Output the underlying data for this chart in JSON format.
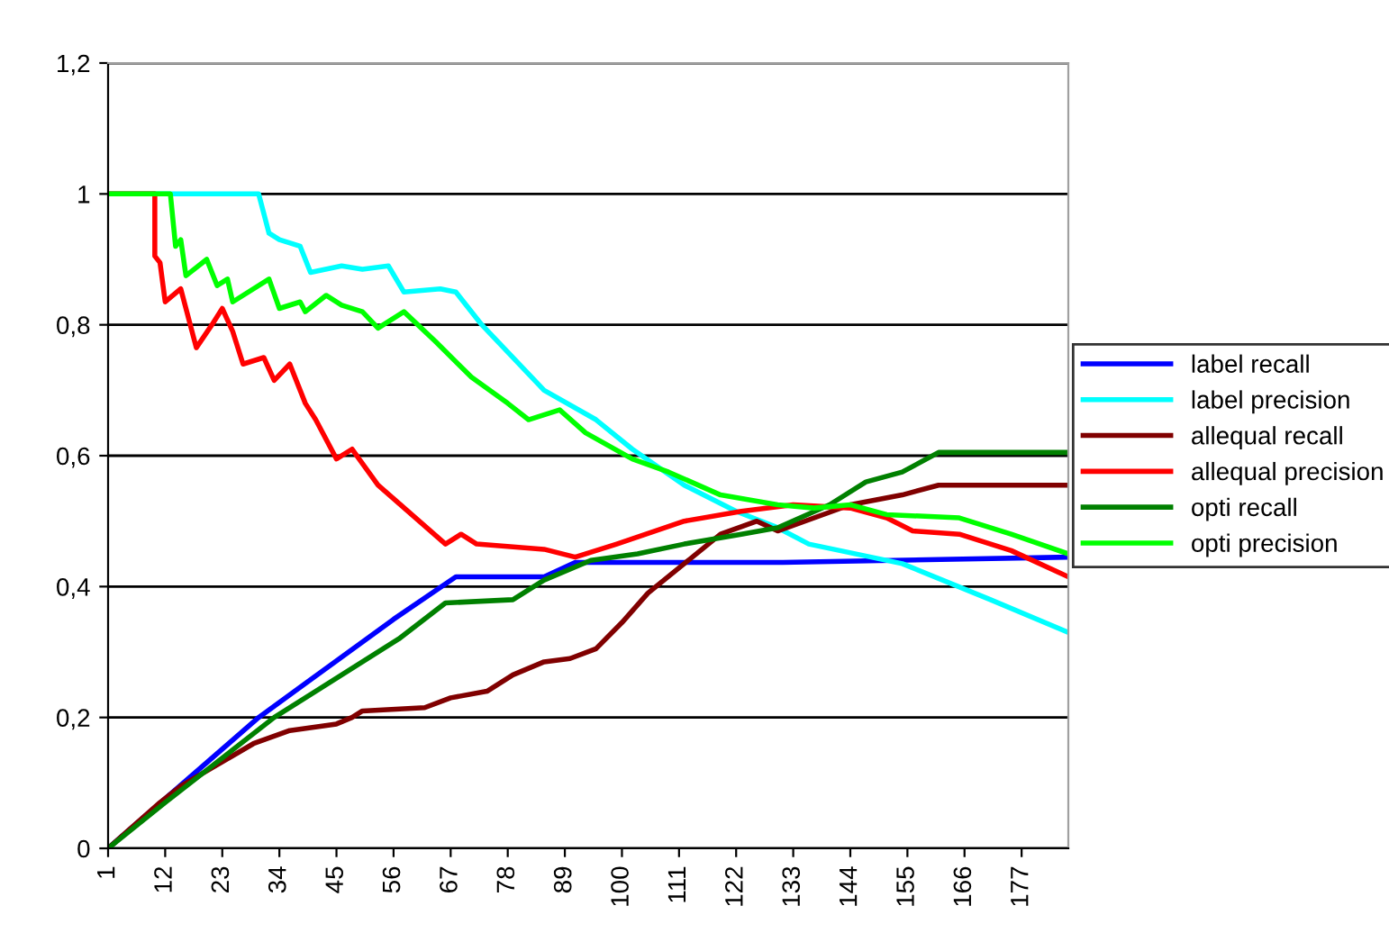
{
  "chart_data": {
    "type": "line",
    "xlim": [
      1,
      186
    ],
    "xticks": [
      1,
      12,
      23,
      34,
      45,
      56,
      67,
      78,
      89,
      100,
      111,
      122,
      133,
      144,
      155,
      166,
      177
    ],
    "ylim": [
      0,
      1.2
    ],
    "yticks": [
      0,
      {
        "value": 0.2,
        "label": "0,2"
      },
      {
        "value": 0.4,
        "label": "0,4"
      },
      {
        "value": 0.6,
        "label": "0,6"
      },
      {
        "value": 0.8,
        "label": "0,8"
      },
      1,
      {
        "value": 1.2,
        "label": "1,2"
      }
    ],
    "grid": "y",
    "legend": "right",
    "marker": "none",
    "line_style": "solid",
    "series": [
      {
        "name": "label recall",
        "color": "#0000ff",
        "x": [
          1,
          30,
          56,
          68,
          85,
          91,
          131,
          186
        ],
        "values": [
          0,
          0.2,
          0.35,
          0.415,
          0.415,
          0.437,
          0.437,
          0.445
        ]
      },
      {
        "name": "label precision",
        "color": "#00ffff",
        "x": [
          1,
          30,
          32,
          34,
          38,
          40,
          46,
          50,
          55,
          58,
          65,
          68,
          73,
          85,
          95,
          102,
          112,
          122,
          130,
          136,
          154,
          171,
          186
        ],
        "values": [
          1,
          1,
          0.94,
          0.93,
          0.92,
          0.88,
          0.89,
          0.885,
          0.89,
          0.85,
          0.855,
          0.85,
          0.8,
          0.7,
          0.655,
          0.61,
          0.555,
          0.515,
          0.49,
          0.465,
          0.435,
          0.38,
          0.33
        ]
      },
      {
        "name": "allequal recall",
        "color": "#800000",
        "x": [
          1,
          11,
          15,
          29,
          36,
          45,
          48,
          50,
          62,
          67,
          74,
          79,
          85,
          90,
          95,
          100,
          105,
          112,
          119,
          126,
          130,
          144,
          154,
          161,
          186
        ],
        "values": [
          0,
          0.07,
          0.095,
          0.16,
          0.18,
          0.19,
          0.2,
          0.21,
          0.215,
          0.23,
          0.24,
          0.265,
          0.285,
          0.29,
          0.305,
          0.345,
          0.39,
          0.435,
          0.48,
          0.5,
          0.485,
          0.525,
          0.54,
          0.555,
          0.555
        ]
      },
      {
        "name": "allequal precision",
        "color": "#ff0000",
        "x": [
          1,
          10,
          10,
          11,
          12,
          15,
          18,
          21,
          23,
          25,
          27,
          31,
          33,
          36,
          39,
          41,
          45,
          48,
          53,
          66,
          69,
          72,
          85,
          91,
          99,
          112,
          123,
          133,
          144,
          151,
          156,
          165,
          175,
          186
        ],
        "values": [
          1,
          1,
          0.905,
          0.895,
          0.835,
          0.855,
          0.765,
          0.8,
          0.825,
          0.79,
          0.74,
          0.75,
          0.715,
          0.74,
          0.68,
          0.655,
          0.595,
          0.61,
          0.555,
          0.465,
          0.48,
          0.465,
          0.457,
          0.445,
          0.465,
          0.5,
          0.515,
          0.525,
          0.52,
          0.505,
          0.485,
          0.48,
          0.455,
          0.415
        ]
      },
      {
        "name": "opti recall",
        "color": "#008000",
        "x": [
          1,
          12,
          33,
          57,
          66,
          79,
          85,
          94,
          103,
          112,
          123,
          130,
          140,
          147,
          154,
          161,
          186
        ],
        "values": [
          0,
          0.07,
          0.2,
          0.32,
          0.375,
          0.38,
          0.41,
          0.44,
          0.45,
          0.465,
          0.48,
          0.49,
          0.525,
          0.56,
          0.575,
          0.605,
          0.605
        ]
      },
      {
        "name": "opti precision",
        "color": "#00ff00",
        "x": [
          1,
          13,
          14,
          15,
          16,
          20,
          22,
          24,
          25,
          32,
          34,
          38,
          39,
          43,
          46,
          50,
          53,
          58,
          64,
          71,
          78,
          82,
          88,
          93,
          102,
          109,
          119,
          130,
          137,
          144,
          151,
          165,
          175,
          186
        ],
        "values": [
          1,
          1,
          0.92,
          0.93,
          0.875,
          0.9,
          0.86,
          0.87,
          0.835,
          0.87,
          0.825,
          0.835,
          0.82,
          0.845,
          0.83,
          0.82,
          0.795,
          0.82,
          0.775,
          0.72,
          0.68,
          0.655,
          0.67,
          0.635,
          0.595,
          0.575,
          0.54,
          0.525,
          0.52,
          0.525,
          0.51,
          0.505,
          0.48,
          0.45
        ]
      }
    ]
  }
}
